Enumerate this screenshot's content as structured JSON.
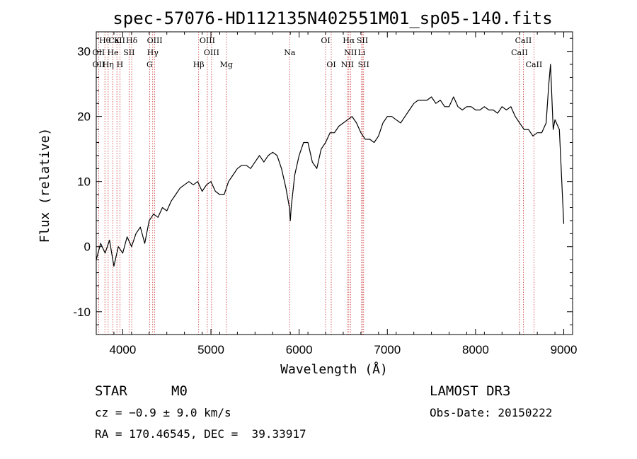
{
  "chart_data": {
    "type": "line",
    "title": "spec-57076-HD112135N402551M01_sp05-140.fits",
    "xlabel": "Wavelength (Å)",
    "ylabel": "Flux (relative)",
    "xlim": [
      3700,
      9100
    ],
    "ylim": [
      -13.5,
      33
    ],
    "x_ticks": [
      4000,
      5000,
      6000,
      7000,
      8000,
      9000
    ],
    "y_ticks": [
      -10,
      0,
      10,
      20,
      30
    ],
    "grid": false,
    "series": [
      {
        "color": "#000000",
        "x": [
          3700,
          3750,
          3800,
          3850,
          3900,
          3950,
          4000,
          4050,
          4100,
          4150,
          4200,
          4250,
          4300,
          4350,
          4400,
          4450,
          4500,
          4550,
          4600,
          4650,
          4700,
          4750,
          4800,
          4850,
          4900,
          4950,
          5000,
          5050,
          5100,
          5150,
          5200,
          5250,
          5300,
          5350,
          5400,
          5450,
          5500,
          5550,
          5600,
          5650,
          5700,
          5750,
          5800,
          5850,
          5890,
          5900,
          5910,
          5950,
          6000,
          6050,
          6100,
          6150,
          6200,
          6250,
          6300,
          6350,
          6400,
          6450,
          6500,
          6550,
          6600,
          6650,
          6700,
          6750,
          6800,
          6850,
          6900,
          6950,
          7000,
          7050,
          7100,
          7150,
          7200,
          7250,
          7300,
          7350,
          7400,
          7450,
          7500,
          7550,
          7600,
          7650,
          7700,
          7750,
          7800,
          7850,
          7900,
          7950,
          8000,
          8050,
          8100,
          8150,
          8200,
          8250,
          8300,
          8350,
          8400,
          8450,
          8500,
          8550,
          8600,
          8650,
          8700,
          8750,
          8800,
          8830,
          8850,
          8880,
          8900,
          8950,
          9000
        ],
        "values": [
          -2,
          0.5,
          -1,
          1,
          -3,
          0,
          -1,
          1.5,
          0,
          2,
          3,
          0.5,
          4,
          5,
          4.5,
          6,
          5.5,
          7,
          8,
          9,
          9.5,
          10,
          9.5,
          10,
          8.5,
          9.5,
          10,
          8.5,
          8,
          8,
          10,
          11,
          12,
          12.5,
          12.5,
          12,
          13,
          14,
          13,
          14,
          14.5,
          14,
          12,
          9,
          6,
          4,
          6,
          11,
          14,
          16,
          16,
          13,
          12,
          15,
          16,
          17.5,
          17.5,
          18.5,
          19,
          19.5,
          20,
          19,
          17.5,
          16.5,
          16.5,
          16,
          17,
          19,
          20,
          20,
          19.5,
          19,
          20,
          21,
          22,
          22.5,
          22.5,
          22.5,
          23,
          22,
          22.5,
          21.5,
          21.5,
          23,
          21.5,
          21,
          21.5,
          21.5,
          21,
          21,
          21.5,
          21,
          21,
          20.5,
          21.5,
          21,
          21.5,
          20,
          19,
          18,
          18,
          17,
          17.5,
          17.5,
          19,
          25,
          28,
          18,
          19.5,
          18,
          3.5
        ]
      }
    ],
    "line_labels": [
      {
        "label": "Hθ",
        "x": 3798,
        "row": 1
      },
      {
        "label": "CaII",
        "x": 3934,
        "row": 1
      },
      {
        "label": "K",
        "x": 3934,
        "row": 1
      },
      {
        "label": "Hδ",
        "x": 4102,
        "row": 1
      },
      {
        "label": "OIII",
        "x": 4363,
        "row": 1
      },
      {
        "label": "OIII",
        "x": 4959,
        "row": 1
      },
      {
        "label": "OI",
        "x": 6300,
        "row": 1
      },
      {
        "label": "Hα",
        "x": 6563,
        "row": 1
      },
      {
        "label": "SII",
        "x": 6717,
        "row": 1
      },
      {
        "label": "CaII",
        "x": 8542,
        "row": 1
      },
      {
        "label": "OII",
        "x": 3727,
        "row": 2
      },
      {
        "label": "He",
        "x": 3889,
        "row": 2
      },
      {
        "label": "SII",
        "x": 4072,
        "row": 2
      },
      {
        "label": "Hγ",
        "x": 4340,
        "row": 2
      },
      {
        "label": "OIII",
        "x": 5007,
        "row": 2
      },
      {
        "label": "Na",
        "x": 5893,
        "row": 2
      },
      {
        "label": "NII",
        "x": 6583,
        "row": 2
      },
      {
        "label": "Li",
        "x": 6708,
        "row": 2
      },
      {
        "label": "CaII",
        "x": 8498,
        "row": 2
      },
      {
        "label": "OII",
        "x": 3727,
        "row": 3
      },
      {
        "label": "Hη",
        "x": 3835,
        "row": 3
      },
      {
        "label": "H",
        "x": 3968,
        "row": 3
      },
      {
        "label": "G",
        "x": 4305,
        "row": 3
      },
      {
        "label": "Hβ",
        "x": 4861,
        "row": 3
      },
      {
        "label": "Mg",
        "x": 5175,
        "row": 3
      },
      {
        "label": "OI",
        "x": 6364,
        "row": 3
      },
      {
        "label": "NII",
        "x": 6548,
        "row": 3
      },
      {
        "label": "SII",
        "x": 6731,
        "row": 3
      },
      {
        "label": "CaII",
        "x": 8662,
        "row": 3
      }
    ],
    "marker_lines": [
      3727,
      3798,
      3835,
      3889,
      3934,
      3968,
      4072,
      4102,
      4305,
      4340,
      4363,
      4861,
      4959,
      5007,
      5175,
      5893,
      6300,
      6364,
      6548,
      6563,
      6583,
      6708,
      6717,
      6731,
      8498,
      8542,
      8662
    ]
  },
  "info": {
    "class": "STAR",
    "subclass": "M0",
    "survey": "LAMOST DR3",
    "cz": "cz = −0.9 ± 9.0 km/s",
    "obs_date": "Obs-Date: 20150222",
    "radec": "RA = 170.46545, DEC =  39.33917"
  },
  "colors": {
    "spectrum": "#000000",
    "marker_line": "#cc3333"
  }
}
